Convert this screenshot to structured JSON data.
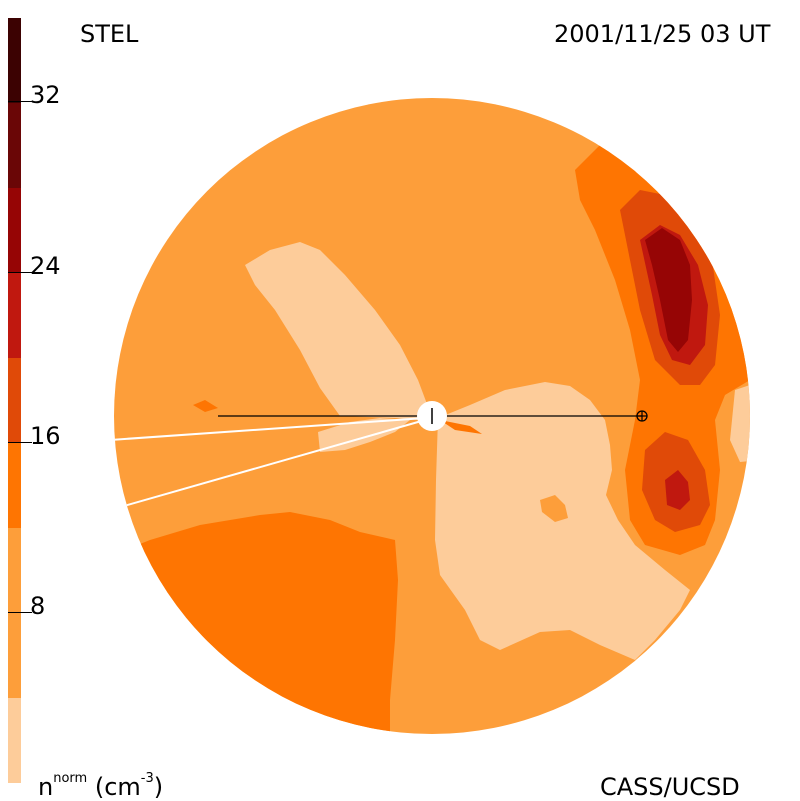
{
  "header": {
    "station": "STEL",
    "timestamp": "2001/11/25 03 UT"
  },
  "footer": {
    "credit": "CASS/UCSD",
    "unit_base": "n",
    "unit_sup": "norm",
    "unit_rest": "(cm",
    "unit_exp": "-3",
    "unit_close": ")"
  },
  "colorbar": {
    "ticks": [
      "32",
      "24",
      "16",
      "8"
    ],
    "tick_values": [
      32,
      24,
      16,
      8
    ],
    "range": [
      0,
      36
    ],
    "levels": [
      {
        "color": "#fdcc9a"
      },
      {
        "color": "#fd9e3a"
      },
      {
        "color": "#fe7502"
      },
      {
        "color": "#e04a08"
      },
      {
        "color": "#c0180f"
      },
      {
        "color": "#960505"
      },
      {
        "color": "#6a0606"
      },
      {
        "color": "#3c0202"
      },
      {
        "color": "#1a0000"
      }
    ]
  },
  "map": {
    "background_color": "#fd9e3a",
    "line_of_sight": "earth-to-spacecraft"
  }
}
